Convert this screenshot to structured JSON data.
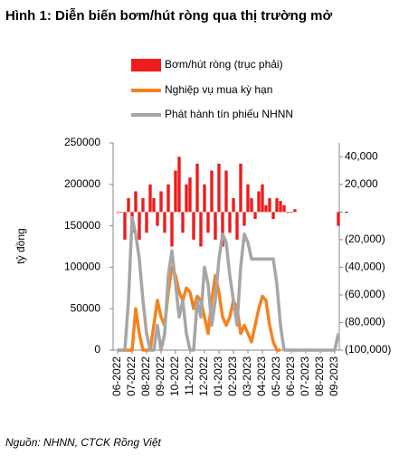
{
  "chart_data": {
    "type": "combo",
    "title": "Hình 1: Diễn biến bơm/hút ròng qua thị trường mở",
    "y_label": "tỷ đồng",
    "source": "Nguồn: NHNN, CTCK Rồng Việt",
    "categories": [
      "06-2022",
      null,
      null,
      null,
      "07-2022",
      null,
      null,
      null,
      "08-2022",
      null,
      null,
      null,
      "09-2022",
      null,
      null,
      null,
      "10-2022",
      null,
      null,
      null,
      "11-2022",
      null,
      null,
      null,
      "12-2022",
      null,
      null,
      null,
      "01-2023",
      null,
      null,
      null,
      "02-2023",
      null,
      null,
      null,
      "03-2023",
      null,
      null,
      null,
      "04-2023",
      null,
      null,
      null,
      "05-2023",
      null,
      null,
      null,
      "06-2023",
      null,
      null,
      null,
      "07-2023",
      null,
      null,
      null,
      "08-2023",
      null,
      null,
      null,
      "09-2023",
      null
    ],
    "ylim": [
      0,
      250000
    ],
    "yticks": [
      0,
      50000,
      100000,
      150000,
      200000,
      250000
    ],
    "y2lim": [
      -100000,
      50000
    ],
    "y2ticks": [
      {
        "value": -100000,
        "label": "(100,000)"
      },
      {
        "value": -80000,
        "label": "(80,000)"
      },
      {
        "value": -60000,
        "label": "(60,000)"
      },
      {
        "value": -40000,
        "label": "(40,000)"
      },
      {
        "value": -20000,
        "label": "(20,000)"
      },
      {
        "value": 0,
        "label": "-"
      },
      {
        "value": 20000,
        "label": "20,000"
      },
      {
        "value": 40000,
        "label": "40,000"
      }
    ],
    "series": [
      {
        "name": "Bơm/hút ròng (trục phải)",
        "type": "bar",
        "axis": "y2",
        "color": "#ee1c1c",
        "values": [
          0,
          0,
          -20000,
          10000,
          -15000,
          15000,
          -20000,
          10000,
          -15000,
          20000,
          10000,
          -10000,
          15000,
          -15000,
          20000,
          -25000,
          30000,
          40000,
          -15000,
          20000,
          25000,
          -20000,
          35000,
          -25000,
          20000,
          -15000,
          30000,
          -20000,
          35000,
          -25000,
          30000,
          -15000,
          10000,
          -20000,
          35000,
          -10000,
          20000,
          10000,
          -5000,
          15000,
          20000,
          5000,
          10000,
          -5000,
          10000,
          8000,
          5000,
          0,
          0,
          2000,
          null,
          null,
          null,
          null,
          null,
          null,
          null,
          null,
          null,
          null,
          null,
          -10000
        ]
      },
      {
        "name": "Nghiệp vụ mua kỳ hạn",
        "type": "line",
        "color": "#f58220",
        "values": [
          0,
          0,
          0,
          0,
          0,
          50000,
          20000,
          0,
          0,
          0,
          30000,
          60000,
          40000,
          30000,
          70000,
          100000,
          90000,
          70000,
          60000,
          75000,
          70000,
          50000,
          65000,
          60000,
          40000,
          20000,
          60000,
          90000,
          70000,
          40000,
          30000,
          40000,
          60000,
          50000,
          20000,
          30000,
          20000,
          10000,
          30000,
          50000,
          65000,
          60000,
          30000,
          10000,
          0,
          0,
          null,
          null,
          null,
          null,
          null,
          null,
          null,
          null,
          null,
          null,
          null,
          null,
          null,
          null,
          null,
          null
        ]
      },
      {
        "name": "Phát hành tín phiếu NHNN",
        "type": "line",
        "color": "#a6a6a6",
        "values": [
          0,
          0,
          0,
          60000,
          160000,
          140000,
          110000,
          60000,
          20000,
          0,
          0,
          30000,
          0,
          20000,
          90000,
          120000,
          80000,
          40000,
          60000,
          20000,
          0,
          0,
          60000,
          40000,
          100000,
          80000,
          30000,
          60000,
          110000,
          140000,
          130000,
          90000,
          60000,
          30000,
          100000,
          140000,
          130000,
          110000,
          110000,
          110000,
          110000,
          110000,
          110000,
          110000,
          80000,
          30000,
          0,
          0,
          0,
          0,
          0,
          0,
          0,
          0,
          0,
          0,
          0,
          0,
          0,
          0,
          0,
          20000
        ]
      }
    ]
  }
}
